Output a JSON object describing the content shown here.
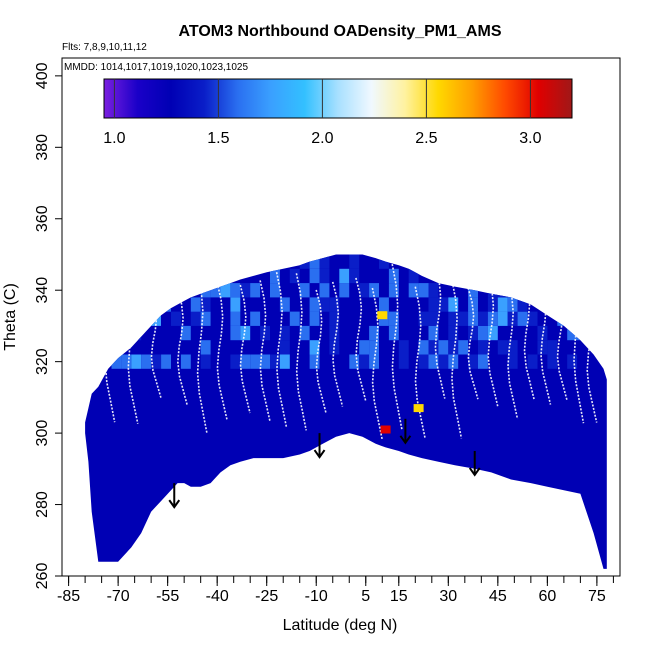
{
  "chart_data": {
    "type": "heatmap",
    "title": "ATOM3 Northbound OADensity_PM1_AMS",
    "subtitle_flights": "Flts: 7,8,9,10,11,12",
    "subtitle_dates": "MMDD: 1014,1017,1019,1020,1023,1025",
    "xlabel": "Latitude (deg N)",
    "ylabel": "Theta (C)",
    "xlim": [
      -87,
      82
    ],
    "ylim": [
      260,
      405
    ],
    "x_ticks": [
      -85,
      -70,
      -55,
      -40,
      -25,
      -10,
      5,
      15,
      30,
      45,
      60,
      75
    ],
    "x_tick_labels": [
      "-85",
      "-70",
      "-55",
      "-40",
      "-25",
      "-10",
      "5",
      "15",
      "30",
      "45",
      "60",
      "75"
    ],
    "y_ticks": [
      260,
      280,
      300,
      320,
      340,
      360,
      380,
      400
    ],
    "y_tick_labels": [
      "260",
      "280",
      "300",
      "320",
      "340",
      "360",
      "380",
      "400"
    ],
    "colorbar": {
      "range": [
        0.95,
        3.2
      ],
      "ticks": [
        1.0,
        1.5,
        2.0,
        2.5,
        3.0
      ],
      "tick_labels": [
        "1.0",
        "1.5",
        "2.0",
        "2.5",
        "3.0"
      ],
      "colors": [
        "#7b1fe0",
        "#1a00c8",
        "#0000b4",
        "#0a1ec8",
        "#2a6ff0",
        "#3aa0ff",
        "#33c0ff",
        "#a8e0ff",
        "#f0f8ff",
        "#fff2a0",
        "#ffd800",
        "#ff9e00",
        "#ff4a00",
        "#e00000",
        "#a01818"
      ]
    },
    "data_envelope": {
      "latitude": [
        -80,
        -79,
        -78,
        -76,
        -73,
        -70,
        -66,
        -63,
        -60,
        -57,
        -54,
        -52,
        -50,
        -48,
        -45,
        -42,
        -39,
        -36,
        -33,
        -29,
        -25,
        -20,
        -15,
        -12,
        -8,
        -4,
        0,
        4,
        8,
        11,
        15,
        18,
        22,
        27,
        32,
        38,
        43,
        49,
        55,
        60,
        65,
        70,
        74,
        77,
        78
      ],
      "theta_top": [
        303,
        307,
        311,
        313,
        318,
        321,
        324,
        327,
        330,
        333,
        335,
        336,
        337,
        338,
        339,
        340,
        341,
        342,
        343,
        344,
        345,
        346,
        347,
        348,
        349,
        350,
        350,
        350,
        349,
        348,
        347,
        346,
        344,
        342,
        341,
        340,
        339,
        338,
        336,
        333,
        330,
        326,
        322,
        318,
        315
      ],
      "theta_bottom": [
        300,
        292,
        278,
        264,
        264,
        264,
        268,
        272,
        278,
        281,
        284,
        286,
        286,
        285,
        285,
        286,
        289,
        291,
        292,
        293,
        293,
        293,
        294,
        295,
        297,
        299,
        300,
        299,
        297,
        296,
        295,
        294,
        293,
        292,
        291,
        290,
        289,
        287,
        286,
        285,
        284,
        283,
        272,
        262,
        262
      ]
    },
    "values_summary": {
      "background": 1.35,
      "bands": [
        {
          "lat": [
            -80,
            -50
          ],
          "theta": [
            300,
            320
          ],
          "value": 1.7
        },
        {
          "lat": [
            -50,
            -20
          ],
          "theta": [
            300,
            330
          ],
          "value": 1.6
        },
        {
          "lat": [
            -20,
            10
          ],
          "theta": [
            295,
            330
          ],
          "value": 1.55
        },
        {
          "lat": [
            15,
            45
          ],
          "theta": [
            295,
            330
          ],
          "value": 1.7
        },
        {
          "lat": [
            45,
            78
          ],
          "theta": [
            290,
            320
          ],
          "value": 1.75
        }
      ],
      "high_points": [
        {
          "lat": 11,
          "theta": 301,
          "value": 3.0
        },
        {
          "lat": 10,
          "theta": 333,
          "value": 2.6
        },
        {
          "lat": 21,
          "theta": 307,
          "value": 2.5
        }
      ]
    },
    "arrows": [
      {
        "lat": -53,
        "theta": 286
      },
      {
        "lat": -9,
        "theta": 300
      },
      {
        "lat": 17,
        "theta": 304
      },
      {
        "lat": 38,
        "theta": 295
      }
    ]
  }
}
